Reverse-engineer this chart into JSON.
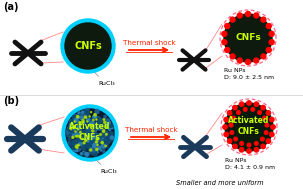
{
  "bg_color": "#ffffff",
  "label_a": "(a)",
  "label_b": "(b)",
  "thermal_shock_text": "Thermal shock",
  "thermal_shock_color": "#ff2200",
  "arrow_color": "#ff2200",
  "cnfs_text": "CNFs",
  "cnfs_color": "#ccff00",
  "activated_cnfs_text": "Activated\nCNFs",
  "rucl3_text": "RuCl₃",
  "ru_nps_text_a": "Ru NPs\nD: 9.0 ± 2.5 nm",
  "ru_nps_text_b": "Ru NPs\nD: 4.1 ± 0.9 nm",
  "smaller_text": "Smaller and more uniform",
  "circle_cyan": "#00d0ff",
  "circle_pink_dash": "#ff6688",
  "dot_red": "#ff0000",
  "fiber_color_a": "#111111",
  "fiber_color_b": "#1a3a5c",
  "text_black": "#000000",
  "pink_line": "#ff8888"
}
